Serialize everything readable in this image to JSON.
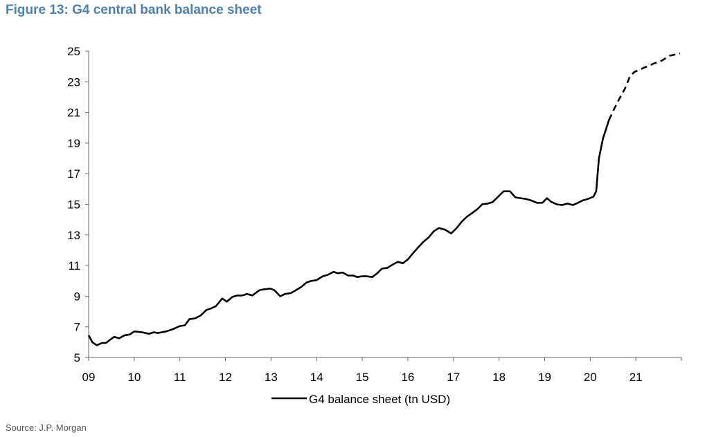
{
  "chart_data": {
    "type": "line",
    "title": "Figure 13: G4 central bank balance sheet",
    "source": "Source: J.P. Morgan",
    "xlabel": "",
    "ylabel": "",
    "xlim": [
      2009,
      2022
    ],
    "ylim": [
      5,
      25
    ],
    "x_ticks": [
      2009,
      2010,
      2011,
      2012,
      2013,
      2014,
      2015,
      2016,
      2017,
      2018,
      2019,
      2020,
      2021
    ],
    "x_tick_labels": [
      "09",
      "10",
      "11",
      "12",
      "13",
      "14",
      "15",
      "16",
      "17",
      "18",
      "19",
      "20",
      "21"
    ],
    "y_ticks": [
      5,
      7,
      9,
      11,
      13,
      15,
      17,
      19,
      21,
      23,
      25
    ],
    "y_tick_labels": [
      "5",
      "7",
      "9",
      "11",
      "13",
      "15",
      "17",
      "19",
      "21",
      "23",
      "25"
    ],
    "grid": false,
    "legend_position": "bottom",
    "legend": [
      "G4 balance sheet (tn USD)"
    ],
    "series": [
      {
        "name": "G4 balance sheet (tn USD)",
        "style": "solid",
        "color": "#000000",
        "points": [
          [
            2009.0,
            6.45
          ],
          [
            2009.08,
            6.0
          ],
          [
            2009.18,
            5.8
          ],
          [
            2009.29,
            5.95
          ],
          [
            2009.38,
            5.95
          ],
          [
            2009.49,
            6.2
          ],
          [
            2009.56,
            6.35
          ],
          [
            2009.67,
            6.25
          ],
          [
            2009.79,
            6.45
          ],
          [
            2009.9,
            6.5
          ],
          [
            2010.0,
            6.7
          ],
          [
            2010.17,
            6.65
          ],
          [
            2010.32,
            6.55
          ],
          [
            2010.43,
            6.65
          ],
          [
            2010.52,
            6.6
          ],
          [
            2010.7,
            6.7
          ],
          [
            2010.85,
            6.85
          ],
          [
            2011.0,
            7.05
          ],
          [
            2011.11,
            7.1
          ],
          [
            2011.21,
            7.5
          ],
          [
            2011.33,
            7.55
          ],
          [
            2011.46,
            7.75
          ],
          [
            2011.58,
            8.1
          ],
          [
            2011.68,
            8.2
          ],
          [
            2011.79,
            8.35
          ],
          [
            2011.93,
            8.85
          ],
          [
            2012.03,
            8.65
          ],
          [
            2012.15,
            8.95
          ],
          [
            2012.26,
            9.05
          ],
          [
            2012.37,
            9.05
          ],
          [
            2012.47,
            9.15
          ],
          [
            2012.59,
            9.05
          ],
          [
            2012.75,
            9.4
          ],
          [
            2012.85,
            9.45
          ],
          [
            2012.98,
            9.5
          ],
          [
            2013.07,
            9.4
          ],
          [
            2013.2,
            9.0
          ],
          [
            2013.31,
            9.15
          ],
          [
            2013.43,
            9.2
          ],
          [
            2013.55,
            9.4
          ],
          [
            2013.66,
            9.6
          ],
          [
            2013.78,
            9.9
          ],
          [
            2013.88,
            10.0
          ],
          [
            2014.0,
            10.05
          ],
          [
            2014.13,
            10.3
          ],
          [
            2014.25,
            10.4
          ],
          [
            2014.37,
            10.6
          ],
          [
            2014.46,
            10.5
          ],
          [
            2014.57,
            10.55
          ],
          [
            2014.69,
            10.35
          ],
          [
            2014.8,
            10.35
          ],
          [
            2014.89,
            10.25
          ],
          [
            2014.99,
            10.3
          ],
          [
            2015.1,
            10.3
          ],
          [
            2015.22,
            10.25
          ],
          [
            2015.33,
            10.5
          ],
          [
            2015.43,
            10.8
          ],
          [
            2015.55,
            10.85
          ],
          [
            2015.66,
            11.05
          ],
          [
            2015.78,
            11.25
          ],
          [
            2015.89,
            11.15
          ],
          [
            2016.0,
            11.4
          ],
          [
            2016.11,
            11.8
          ],
          [
            2016.23,
            12.2
          ],
          [
            2016.34,
            12.55
          ],
          [
            2016.46,
            12.85
          ],
          [
            2016.57,
            13.25
          ],
          [
            2016.68,
            13.45
          ],
          [
            2016.81,
            13.35
          ],
          [
            2016.95,
            13.1
          ],
          [
            2017.07,
            13.45
          ],
          [
            2017.19,
            13.9
          ],
          [
            2017.3,
            14.2
          ],
          [
            2017.42,
            14.45
          ],
          [
            2017.53,
            14.7
          ],
          [
            2017.63,
            15.0
          ],
          [
            2017.75,
            15.05
          ],
          [
            2017.86,
            15.15
          ],
          [
            2017.98,
            15.5
          ],
          [
            2018.1,
            15.85
          ],
          [
            2018.24,
            15.85
          ],
          [
            2018.36,
            15.45
          ],
          [
            2018.47,
            15.4
          ],
          [
            2018.59,
            15.35
          ],
          [
            2018.71,
            15.25
          ],
          [
            2018.83,
            15.1
          ],
          [
            2018.95,
            15.1
          ],
          [
            2019.05,
            15.4
          ],
          [
            2019.15,
            15.15
          ],
          [
            2019.27,
            15.0
          ],
          [
            2019.38,
            14.95
          ],
          [
            2019.5,
            15.05
          ],
          [
            2019.62,
            14.95
          ],
          [
            2019.73,
            15.1
          ],
          [
            2019.83,
            15.25
          ],
          [
            2019.95,
            15.35
          ],
          [
            2020.07,
            15.5
          ],
          [
            2020.13,
            15.85
          ],
          [
            2020.19,
            18.0
          ],
          [
            2020.28,
            19.3
          ],
          [
            2020.41,
            20.5
          ]
        ]
      },
      {
        "name": "",
        "style": "dashed",
        "color": "#000000",
        "points": [
          [
            2020.41,
            20.5
          ],
          [
            2020.52,
            21.2
          ],
          [
            2020.64,
            21.9
          ],
          [
            2020.76,
            22.55
          ],
          [
            2020.87,
            23.35
          ],
          [
            2020.97,
            23.65
          ],
          [
            2021.09,
            23.8
          ],
          [
            2021.24,
            24.0
          ],
          [
            2021.4,
            24.2
          ],
          [
            2021.55,
            24.35
          ],
          [
            2021.74,
            24.7
          ],
          [
            2021.97,
            24.85
          ]
        ]
      }
    ]
  }
}
